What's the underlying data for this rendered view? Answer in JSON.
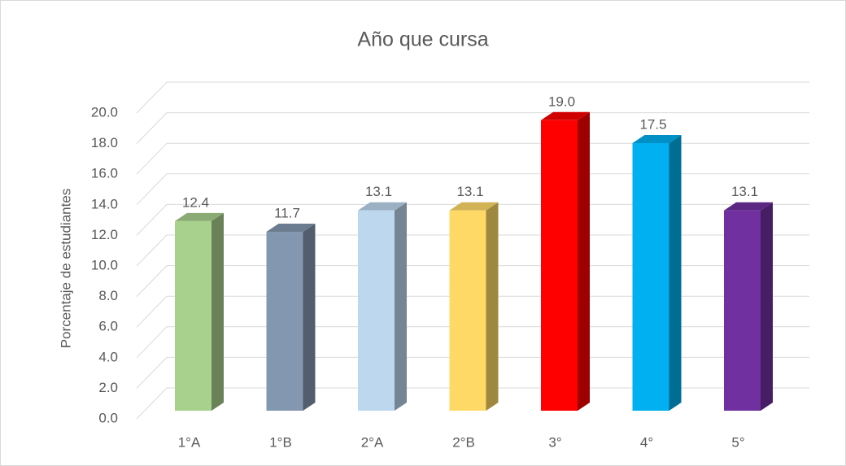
{
  "chart_data": {
    "type": "bar3d",
    "title": "Año que cursa",
    "y_label": "Porcentaje de estudiantes",
    "categories": [
      "1°A",
      "1°B",
      "2°A",
      "2°B",
      "3°",
      "4°",
      "5°"
    ],
    "values": [
      12.4,
      11.7,
      13.1,
      13.1,
      19.0,
      17.5,
      13.1
    ],
    "value_labels": [
      "12.4",
      "11.7",
      "13.1",
      "13.1",
      "19.0",
      "17.5",
      "13.1"
    ],
    "colors": [
      "#a9d18e",
      "#8497b0",
      "#bdd7ee",
      "#ffd966",
      "#ff0000",
      "#00b0f0",
      "#7030a0"
    ],
    "ylim": [
      0,
      20
    ],
    "yticks": [
      {
        "value": 0,
        "label": "0.0"
      },
      {
        "value": 2,
        "label": "2.0"
      },
      {
        "value": 4,
        "label": "4.0"
      },
      {
        "value": 6,
        "label": "6.0"
      },
      {
        "value": 8,
        "label": "8.0"
      },
      {
        "value": 10,
        "label": "10.0"
      },
      {
        "value": 12,
        "label": "12.0"
      },
      {
        "value": 14,
        "label": "14.0"
      },
      {
        "value": 16,
        "label": "16.0"
      },
      {
        "value": 18,
        "label": "18.0"
      },
      {
        "value": 20,
        "label": "20.0"
      }
    ],
    "grid": true
  }
}
